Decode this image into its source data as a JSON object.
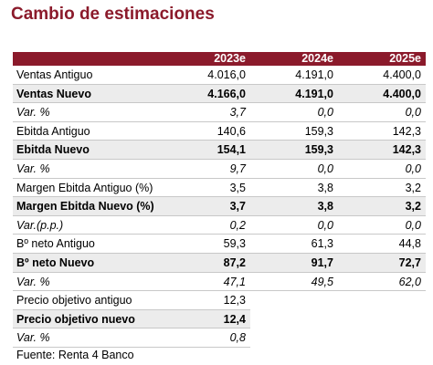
{
  "title": "Cambio de estimaciones",
  "table": {
    "header": [
      "2023e",
      "2024e",
      "2025e"
    ],
    "rows": [
      [
        "Ventas Antiguo",
        "4.016,0",
        "4.191,0",
        "4.400,0"
      ],
      [
        "Ventas Nuevo",
        "4.166,0",
        "4.191,0",
        "4.400,0"
      ],
      [
        "Var. %",
        "3,7",
        "0,0",
        "0,0"
      ],
      [
        "Ebitda Antiguo",
        "140,6",
        "159,3",
        "142,3"
      ],
      [
        "Ebitda Nuevo",
        "154,1",
        "159,3",
        "142,3"
      ],
      [
        "Var. %",
        "9,7",
        "0,0",
        "0,0"
      ],
      [
        "Margen Ebitda Antiguo (%)",
        "3,5",
        "3,8",
        "3,2"
      ],
      [
        "Margen Ebitda Nuevo (%)",
        "3,7",
        "3,8",
        "3,2"
      ],
      [
        "Var.(p.p.)",
        "0,2",
        "0,0",
        "0,0"
      ],
      [
        "Bº neto Antiguo",
        "59,3",
        "61,3",
        "44,8"
      ],
      [
        "Bº neto Nuevo",
        "87,2",
        "91,7",
        "72,7"
      ],
      [
        "Var. %",
        "47,1",
        "49,5",
        "62,0"
      ],
      [
        "Precio objetivo antiguo",
        "12,3"
      ],
      [
        "Precio objetivo nuevo",
        "12,4"
      ],
      [
        "Var. %",
        "0,8"
      ]
    ]
  },
  "source": "Fuente: Renta 4 Banco"
}
